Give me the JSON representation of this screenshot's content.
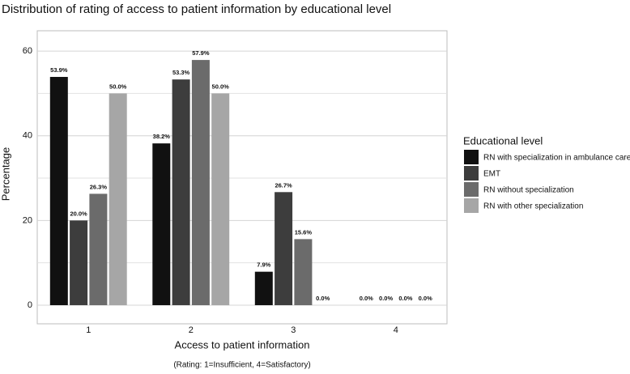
{
  "chart_data": {
    "type": "bar",
    "title": "Distribution of rating of access to patient information by educational level",
    "x_label": "Access to patient information",
    "caption": "(Rating: 1=Insufficient, 4=Satisfactory)",
    "y_label": "Percentage",
    "legend_title": "Educational level",
    "legend_position": "right",
    "categories": [
      "1",
      "2",
      "3",
      "4"
    ],
    "series": [
      {
        "name": "RN with specialization in ambulance care",
        "color": "#111111",
        "values": [
          53.9,
          38.2,
          7.9,
          0.0
        ],
        "value_labels": [
          "53.9%",
          "38.2%",
          "7.9%",
          "0.0%"
        ]
      },
      {
        "name": "EMT",
        "color": "#3d3d3d",
        "values": [
          20.0,
          53.3,
          26.7,
          0.0
        ],
        "value_labels": [
          "20.0%",
          "53.3%",
          "26.7%",
          "0.0%"
        ]
      },
      {
        "name": "RN without specialization",
        "color": "#6b6b6b",
        "values": [
          26.3,
          57.9,
          15.6,
          0.0
        ],
        "value_labels": [
          "26.3%",
          "57.9%",
          "15.6%",
          "0.0%"
        ]
      },
      {
        "name": "RN with other specialization",
        "color": "#a6a6a6",
        "values": [
          50.0,
          50.0,
          0.0,
          0.0
        ],
        "value_labels": [
          "50.0%",
          "50.0%",
          "0.0%",
          "0.0%"
        ]
      }
    ],
    "ylim": [
      -4.4,
      64.8
    ],
    "yticks": [
      0,
      20,
      40,
      60
    ],
    "minor_yticks": [
      10,
      30,
      50
    ],
    "grid": true
  }
}
